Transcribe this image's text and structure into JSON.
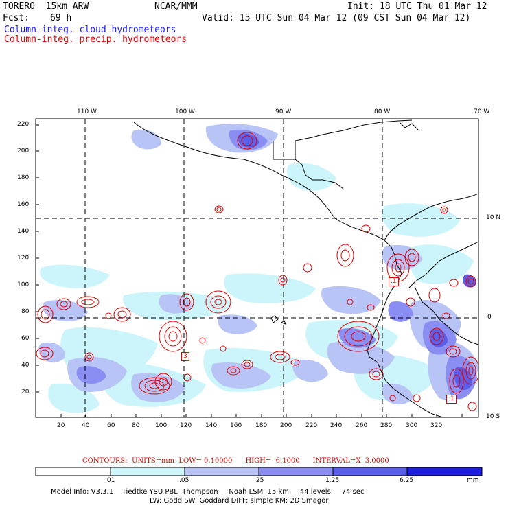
{
  "header": {
    "model": "TORERO  15km ARW",
    "center": "NCAR/MMM",
    "init": "Init: 18 UTC Thu 01 Mar 12",
    "fcst_label": "Fcst:",
    "fcst_value": "69 h",
    "valid": "Valid: 15 UTC Sun 04 Mar 12 (09 CST Sun 04 Mar 12)",
    "line_cloud": "Column-integ. cloud hydrometeors",
    "line_precip": "Column-integ. precip. hydrometeors"
  },
  "colors": {
    "cloud_text": "#1a1aff",
    "precip_text": "#e00000",
    "scale": [
      "#ffffff",
      "#ccf5fb",
      "#b8c4f6",
      "#8a8ef2",
      "#5a5ee8",
      "#1e1ee0"
    ]
  },
  "axes": {
    "top_lon": [
      "110 W",
      "100 W",
      "90 W",
      "80 W",
      "70 W"
    ],
    "right_lat": [
      "10 N",
      "0",
      "10 S"
    ],
    "left_y": [
      "220",
      "200",
      "180",
      "160",
      "140",
      "120",
      "100",
      "80",
      "60",
      "40",
      "20"
    ],
    "bottom_x": [
      "20",
      "40",
      "60",
      "80",
      "100",
      "120",
      "140",
      "160",
      "180",
      "200",
      "220",
      "240",
      "260",
      "280",
      "300",
      "320"
    ]
  },
  "box_labels": [
    ".1",
    "3",
    ".1"
  ],
  "contours_note": "CONTOURS:  UNITS=mm  LOW= 0.10000      HIGH=  6.1000      INTERVAL=X  3.0000",
  "colorbar": {
    "ticks": [
      ".01",
      ".05",
      ".25",
      "1.25",
      "6.25"
    ],
    "unit": "mm"
  },
  "footer": {
    "line1": "Model Info: V3.3.1    Tiedtke YSU PBL  Thompson     Noah LSM  15 km,    44 levels,    74 sec",
    "line2": "LW: Godd SW: Goddard DIFF: simple KM: 2D Smagor"
  }
}
